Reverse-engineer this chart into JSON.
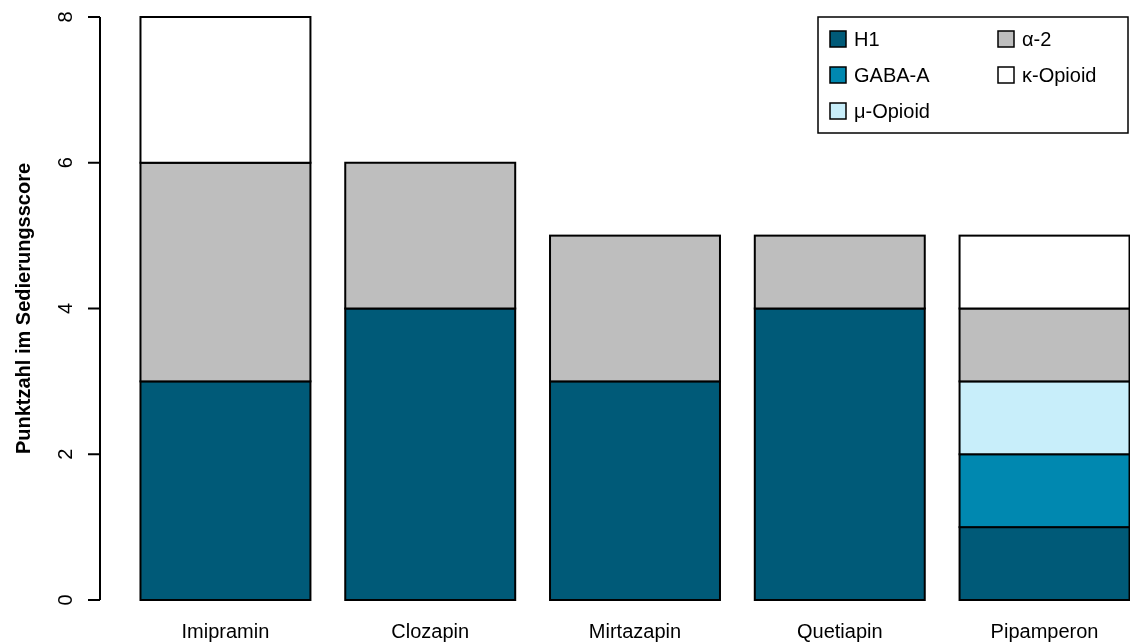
{
  "chart_data": {
    "type": "bar",
    "stacked": true,
    "ylabel": "Punktzahl im Sedierungsscore",
    "categories": [
      "Imipramin",
      "Clozapin",
      "Mirtazapin",
      "Quetiapin",
      "Pipamperon"
    ],
    "series": [
      {
        "name": "H1",
        "color": "#005a78",
        "values": [
          3,
          4,
          3,
          4,
          1
        ]
      },
      {
        "name": "GABA-A",
        "color": "#0088b0",
        "values": [
          null,
          null,
          null,
          null,
          1
        ]
      },
      {
        "name": "μ-Opioid",
        "color": "#c8eefa",
        "values": [
          null,
          null,
          null,
          null,
          1
        ]
      },
      {
        "name": "α-2",
        "color": "#bebebe",
        "values": [
          3,
          2,
          2,
          1,
          1
        ]
      },
      {
        "name": "κ-Opioid",
        "color": "#ffffff",
        "values": [
          2,
          null,
          null,
          null,
          1
        ]
      }
    ],
    "ylim": [
      0,
      8
    ],
    "yticks": [
      0,
      2,
      4,
      6,
      8
    ],
    "legend": "top right",
    "grid": false
  }
}
